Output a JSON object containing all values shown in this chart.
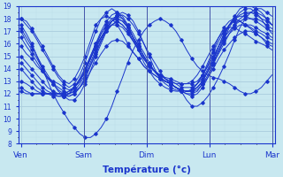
{
  "xlabel": "Température (°c)",
  "ylim": [
    8,
    19
  ],
  "yticks": [
    8,
    9,
    10,
    11,
    12,
    13,
    14,
    15,
    16,
    17,
    18,
    19
  ],
  "x_days": [
    "Ven",
    "Sam",
    "Dim",
    "Lun",
    "Mar"
  ],
  "background_color": "#c8e8f0",
  "grid_major_color": "#aaccdd",
  "grid_minor_color": "#bbdde8",
  "line_color": "#1a35cc",
  "series": [
    [
      18.0,
      17.8,
      17.2,
      16.5,
      15.8,
      15.0,
      14.2,
      13.5,
      13.0,
      12.8,
      13.2,
      14.0,
      15.0,
      16.2,
      17.5,
      18.0,
      18.2,
      18.0,
      17.5,
      16.8,
      16.0,
      15.3,
      14.8,
      14.2,
      13.8,
      13.5,
      13.2,
      13.0,
      12.8,
      12.5,
      12.3,
      12.2,
      12.2,
      12.5,
      13.0,
      13.8,
      14.5,
      15.2,
      16.0,
      16.8,
      17.5,
      18.0,
      18.3,
      18.5,
      18.5,
      18.3,
      18.0,
      17.5
    ],
    [
      18.0,
      17.5,
      17.0,
      16.3,
      15.5,
      14.8,
      14.0,
      13.3,
      12.8,
      12.5,
      12.8,
      13.5,
      14.5,
      15.8,
      17.0,
      18.0,
      18.5,
      18.8,
      18.5,
      18.0,
      17.3,
      16.5,
      15.8,
      15.0,
      14.3,
      13.8,
      13.3,
      13.0,
      12.8,
      12.5,
      12.2,
      11.5,
      11.0,
      11.0,
      11.3,
      11.8,
      12.5,
      13.3,
      14.2,
      15.2,
      16.3,
      17.3,
      18.0,
      18.5,
      18.8,
      18.8,
      18.5,
      18.2
    ],
    [
      17.5,
      16.8,
      16.0,
      15.0,
      14.0,
      13.0,
      12.0,
      11.2,
      10.5,
      9.8,
      9.3,
      8.8,
      8.5,
      8.5,
      8.8,
      9.3,
      10.0,
      11.0,
      12.2,
      13.3,
      14.5,
      15.5,
      16.3,
      17.0,
      17.5,
      17.8,
      18.0,
      17.8,
      17.5,
      17.0,
      16.3,
      15.5,
      14.8,
      14.2,
      13.8,
      13.5,
      13.3,
      13.2,
      13.0,
      12.8,
      12.5,
      12.2,
      12.0,
      12.0,
      12.2,
      12.5,
      13.0,
      13.5
    ],
    [
      17.2,
      16.5,
      15.8,
      15.0,
      14.2,
      13.5,
      12.8,
      12.2,
      11.8,
      11.5,
      11.5,
      12.0,
      12.8,
      13.8,
      15.0,
      16.0,
      17.0,
      17.8,
      18.3,
      18.5,
      18.3,
      17.8,
      17.0,
      16.0,
      15.0,
      14.0,
      13.2,
      12.8,
      12.5,
      12.3,
      12.2,
      12.0,
      12.0,
      12.2,
      12.8,
      13.5,
      14.5,
      15.5,
      16.5,
      17.5,
      18.2,
      18.8,
      19.0,
      19.0,
      18.8,
      18.5,
      18.0,
      17.5
    ],
    [
      17.0,
      16.2,
      15.5,
      14.8,
      14.0,
      13.3,
      12.8,
      12.3,
      12.0,
      11.8,
      12.0,
      12.5,
      13.3,
      14.3,
      15.3,
      16.3,
      17.2,
      17.8,
      18.2,
      18.3,
      18.0,
      17.5,
      16.8,
      16.0,
      15.2,
      14.5,
      13.8,
      13.2,
      12.8,
      12.5,
      12.2,
      12.0,
      11.8,
      12.0,
      12.5,
      13.3,
      14.3,
      15.3,
      16.3,
      17.3,
      18.0,
      18.5,
      18.8,
      18.8,
      18.5,
      18.0,
      17.3,
      16.8
    ],
    [
      16.5,
      15.8,
      15.2,
      14.5,
      13.8,
      13.2,
      12.8,
      12.5,
      12.2,
      12.0,
      12.2,
      12.8,
      13.5,
      14.5,
      15.5,
      16.5,
      17.3,
      17.8,
      18.0,
      17.8,
      17.3,
      16.5,
      15.8,
      15.0,
      14.3,
      13.8,
      13.3,
      13.0,
      12.8,
      12.5,
      12.3,
      12.2,
      12.3,
      12.8,
      13.5,
      14.5,
      15.5,
      16.5,
      17.3,
      17.8,
      18.0,
      17.8,
      17.5,
      17.3,
      17.0,
      16.8,
      16.5,
      16.3
    ],
    [
      15.8,
      15.2,
      14.8,
      14.2,
      13.8,
      13.3,
      13.0,
      12.8,
      12.5,
      12.3,
      12.5,
      13.0,
      13.8,
      14.8,
      15.8,
      16.8,
      17.5,
      18.0,
      18.2,
      18.0,
      17.5,
      16.8,
      16.0,
      15.3,
      14.5,
      13.8,
      13.3,
      13.0,
      12.8,
      12.5,
      12.3,
      12.2,
      12.3,
      12.8,
      13.5,
      14.3,
      15.3,
      16.2,
      17.0,
      17.5,
      17.8,
      17.8,
      17.5,
      17.2,
      16.8,
      16.5,
      16.0,
      15.8
    ],
    [
      15.0,
      14.5,
      14.0,
      13.5,
      13.0,
      12.5,
      12.2,
      12.0,
      11.8,
      11.8,
      12.0,
      12.5,
      13.2,
      14.2,
      15.2,
      16.2,
      17.0,
      17.5,
      17.8,
      17.5,
      17.0,
      16.2,
      15.5,
      14.8,
      14.2,
      13.8,
      13.5,
      13.3,
      13.2,
      13.0,
      12.8,
      12.8,
      13.0,
      13.5,
      14.2,
      15.0,
      15.8,
      16.5,
      17.0,
      17.3,
      17.3,
      17.0,
      16.8,
      16.5,
      16.2,
      16.0,
      15.8,
      15.5
    ],
    [
      14.5,
      14.0,
      13.5,
      13.0,
      12.5,
      12.2,
      12.0,
      11.8,
      11.8,
      12.0,
      12.5,
      13.2,
      14.0,
      15.0,
      16.0,
      17.0,
      17.8,
      18.3,
      18.5,
      18.2,
      17.5,
      16.5,
      15.5,
      14.5,
      13.8,
      13.2,
      12.8,
      12.5,
      12.3,
      12.2,
      12.2,
      12.2,
      12.3,
      12.5,
      13.0,
      13.8,
      14.8,
      15.8,
      16.8,
      17.5,
      18.0,
      18.2,
      18.2,
      18.0,
      17.8,
      17.5,
      17.2,
      17.0
    ],
    [
      14.0,
      13.5,
      13.0,
      12.5,
      12.2,
      12.0,
      11.8,
      11.8,
      11.8,
      12.0,
      12.5,
      13.2,
      14.0,
      15.0,
      16.0,
      16.8,
      17.5,
      17.8,
      18.0,
      17.8,
      17.3,
      16.5,
      15.8,
      15.0,
      14.3,
      13.8,
      13.3,
      13.0,
      12.8,
      12.5,
      12.3,
      12.2,
      12.2,
      12.5,
      13.0,
      13.8,
      14.8,
      15.8,
      16.8,
      17.5,
      18.0,
      18.3,
      18.5,
      18.5,
      18.3,
      18.0,
      17.8,
      17.5
    ],
    [
      13.0,
      12.8,
      12.5,
      12.2,
      12.0,
      12.0,
      12.0,
      12.0,
      12.0,
      12.2,
      12.5,
      13.0,
      13.8,
      14.8,
      15.8,
      16.5,
      17.2,
      17.5,
      17.8,
      17.5,
      17.0,
      16.3,
      15.5,
      14.8,
      14.2,
      13.8,
      13.5,
      13.2,
      13.0,
      12.8,
      12.8,
      12.8,
      12.8,
      13.0,
      13.5,
      14.2,
      15.0,
      15.8,
      16.5,
      17.0,
      17.5,
      17.8,
      18.0,
      18.0,
      18.0,
      17.8,
      17.5,
      17.2
    ],
    [
      12.5,
      12.2,
      12.0,
      12.0,
      12.0,
      12.0,
      12.0,
      12.0,
      12.0,
      12.2,
      12.5,
      13.0,
      13.8,
      14.8,
      15.8,
      16.5,
      17.0,
      17.5,
      17.5,
      17.3,
      16.8,
      16.2,
      15.5,
      14.8,
      14.2,
      13.8,
      13.5,
      13.2,
      13.0,
      12.8,
      12.5,
      12.5,
      12.5,
      12.8,
      13.2,
      14.0,
      14.8,
      15.5,
      16.2,
      16.8,
      17.2,
      17.5,
      17.5,
      17.5,
      17.3,
      17.0,
      16.8,
      16.5
    ],
    [
      12.2,
      12.0,
      12.0,
      12.0,
      12.0,
      12.0,
      12.0,
      12.0,
      12.0,
      12.0,
      12.2,
      12.5,
      13.0,
      13.8,
      14.5,
      15.2,
      15.8,
      16.2,
      16.3,
      16.2,
      15.8,
      15.3,
      14.8,
      14.2,
      13.8,
      13.5,
      13.2,
      13.0,
      12.8,
      12.5,
      12.3,
      12.2,
      12.2,
      12.3,
      12.8,
      13.3,
      14.0,
      14.8,
      15.5,
      16.0,
      16.5,
      16.8,
      17.0,
      17.0,
      16.8,
      16.5,
      16.2,
      16.0
    ]
  ],
  "line_styles": [
    "solid",
    "solid",
    "solid",
    "solid",
    "solid",
    "solid",
    "solid",
    "solid",
    "solid",
    "solid",
    "solid",
    "solid",
    "solid"
  ],
  "n_points": 48,
  "figsize": [
    3.2,
    2.0
  ],
  "dpi": 100
}
